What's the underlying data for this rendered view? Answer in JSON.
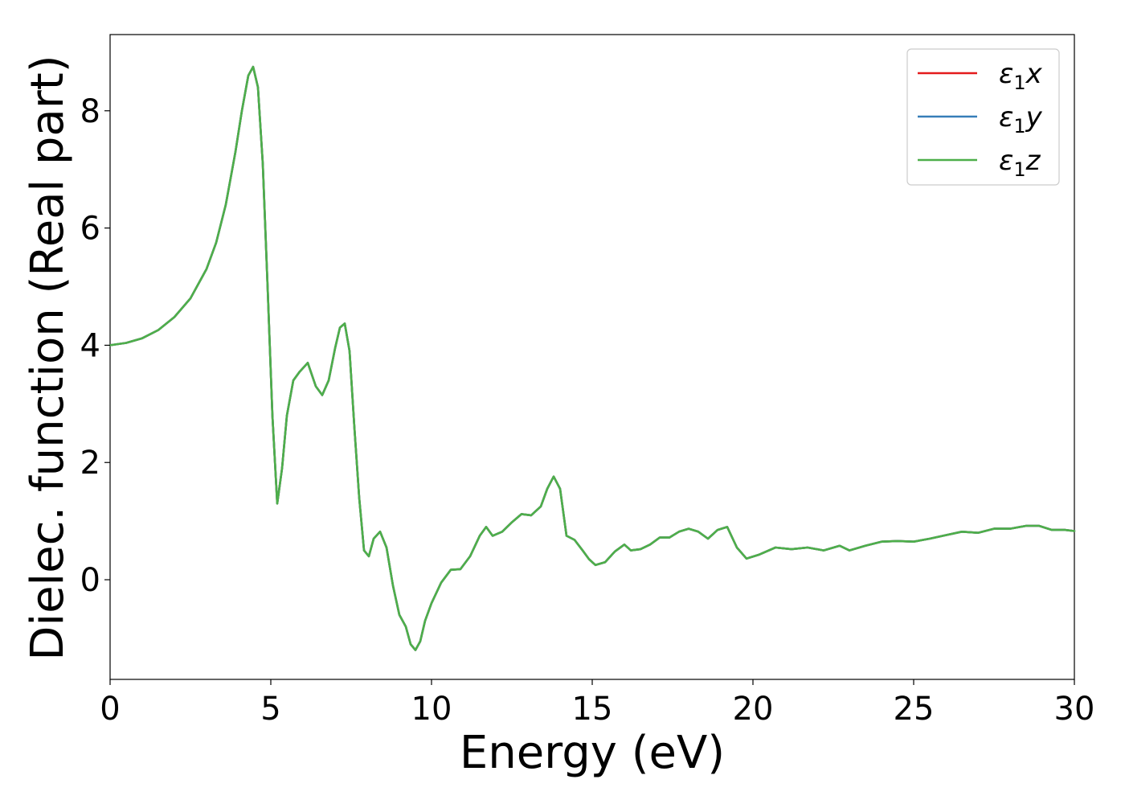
{
  "chart_data": {
    "type": "line",
    "title": "",
    "xlabel": "Energy (eV)",
    "ylabel": "Dielec. function (Real part)",
    "xlim": [
      0,
      30
    ],
    "ylim": [
      -1.7,
      9.3
    ],
    "x_ticks": [
      0,
      5,
      10,
      15,
      20,
      25,
      30
    ],
    "y_ticks": [
      0,
      2,
      4,
      6,
      8
    ],
    "grid": false,
    "legend_position": "top-right",
    "series": [
      {
        "name": "ε₁x",
        "legend_base": "ε",
        "legend_sub": "1",
        "legend_suffix": "x",
        "color": "#e41a1c",
        "x": [
          0,
          0.5,
          1.0,
          1.5,
          2.0,
          2.5,
          3.0,
          3.3,
          3.6,
          3.9,
          4.1,
          4.3,
          4.45,
          4.6,
          4.75,
          4.9,
          5.05,
          5.2,
          5.35,
          5.5,
          5.7,
          5.9,
          6.15,
          6.4,
          6.6,
          6.8,
          7.0,
          7.15,
          7.3,
          7.45,
          7.6,
          7.75,
          7.9,
          8.05,
          8.2,
          8.4,
          8.6,
          8.8,
          9.0,
          9.2,
          9.35,
          9.5,
          9.65,
          9.8,
          10.0,
          10.3,
          10.6,
          10.9,
          11.2,
          11.5,
          11.7,
          11.9,
          12.2,
          12.5,
          12.8,
          13.1,
          13.4,
          13.6,
          13.8,
          14.0,
          14.2,
          14.45,
          14.7,
          14.9,
          15.1,
          15.4,
          15.7,
          16.0,
          16.2,
          16.5,
          16.8,
          17.1,
          17.4,
          17.7,
          18.0,
          18.3,
          18.6,
          18.9,
          19.2,
          19.5,
          19.8,
          20.2,
          20.7,
          21.2,
          21.7,
          22.2,
          22.7,
          23.0,
          23.5,
          24.0,
          24.5,
          25.0,
          25.5,
          26.0,
          26.5,
          27.0,
          27.5,
          28.0,
          28.5,
          28.9,
          29.3,
          29.7,
          30.0
        ],
        "y": [
          4.0,
          4.04,
          4.12,
          4.26,
          4.48,
          4.8,
          5.3,
          5.75,
          6.4,
          7.3,
          8.0,
          8.6,
          8.75,
          8.4,
          7.1,
          5.0,
          2.8,
          1.3,
          1.9,
          2.8,
          3.4,
          3.55,
          3.7,
          3.3,
          3.15,
          3.4,
          3.95,
          4.3,
          4.37,
          3.9,
          2.6,
          1.4,
          0.5,
          0.4,
          0.7,
          0.82,
          0.55,
          -0.1,
          -0.6,
          -0.8,
          -1.1,
          -1.2,
          -1.05,
          -0.7,
          -0.4,
          -0.05,
          0.17,
          0.18,
          0.4,
          0.75,
          0.9,
          0.75,
          0.82,
          0.98,
          1.12,
          1.1,
          1.25,
          1.55,
          1.76,
          1.55,
          0.75,
          0.68,
          0.5,
          0.35,
          0.25,
          0.3,
          0.48,
          0.6,
          0.5,
          0.52,
          0.6,
          0.72,
          0.72,
          0.82,
          0.87,
          0.82,
          0.7,
          0.85,
          0.9,
          0.55,
          0.36,
          0.43,
          0.55,
          0.52,
          0.55,
          0.5,
          0.58,
          0.5,
          0.58,
          0.65,
          0.66,
          0.65,
          0.7,
          0.76,
          0.82,
          0.8,
          0.87,
          0.87,
          0.92,
          0.92,
          0.85,
          0.85,
          0.83
        ]
      },
      {
        "name": "ε₁y",
        "legend_base": "ε",
        "legend_sub": "1",
        "legend_suffix": "y",
        "color": "#377eb8",
        "same_as": 0
      },
      {
        "name": "ε₁z",
        "legend_base": "ε",
        "legend_sub": "1",
        "legend_suffix": "z",
        "color": "#4daf4a",
        "same_as": 0
      }
    ]
  }
}
